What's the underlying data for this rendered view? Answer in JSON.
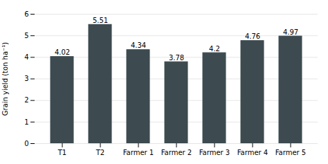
{
  "chart_data": {
    "type": "bar",
    "categories": [
      "T1",
      "T2",
      "Farmer 1",
      "Farmer 2",
      "Farmer 3",
      "Farmer 4",
      "Farmer 5"
    ],
    "values": [
      4.02,
      5.51,
      4.34,
      3.78,
      4.2,
      4.76,
      4.97
    ],
    "color": "#3d4b50",
    "ylabel": "Grain yield (ton ha⁻¹)",
    "ylim": [
      0,
      6
    ],
    "yticks": [
      0,
      1,
      2,
      3,
      4,
      5,
      6
    ],
    "grid": true,
    "data_labels": true
  }
}
